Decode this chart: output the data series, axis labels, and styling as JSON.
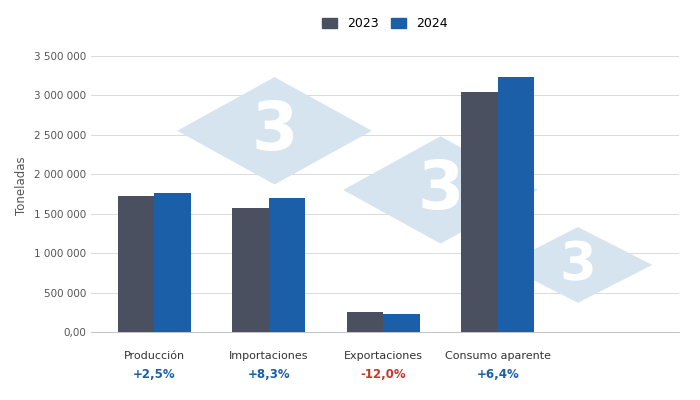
{
  "categories": [
    "Producción",
    "Importaciones",
    "Exportaciones",
    "Consumo aparente"
  ],
  "values_2023": [
    1720000,
    1565000,
    252000,
    3040000
  ],
  "values_2024": [
    1763000,
    1695000,
    222000,
    3236000
  ],
  "pct_changes": [
    "+2,5%",
    "+8,3%",
    "-12,0%",
    "+6,4%"
  ],
  "pct_colors": [
    "#1a5fa8",
    "#1a5fa8",
    "#c0392b",
    "#1a5fa8"
  ],
  "color_2023": "#4a5060",
  "color_2024": "#1a5fa8",
  "ylabel": "Toneladas",
  "ylim": [
    0,
    3700000
  ],
  "yticks": [
    0,
    500000,
    1000000,
    1500000,
    2000000,
    2500000,
    3000000,
    3500000
  ],
  "ytick_labels": [
    "0,00",
    "500 000",
    "1 000 000",
    "1 500 000",
    "2 000 000",
    "2 500 000",
    "3 000 000",
    "3 500 000"
  ],
  "legend_labels": [
    "2023",
    "2024"
  ],
  "bar_width": 0.32,
  "background_color": "#ffffff",
  "watermark_color": "#d6e4f0",
  "grid_color": "#cccccc"
}
